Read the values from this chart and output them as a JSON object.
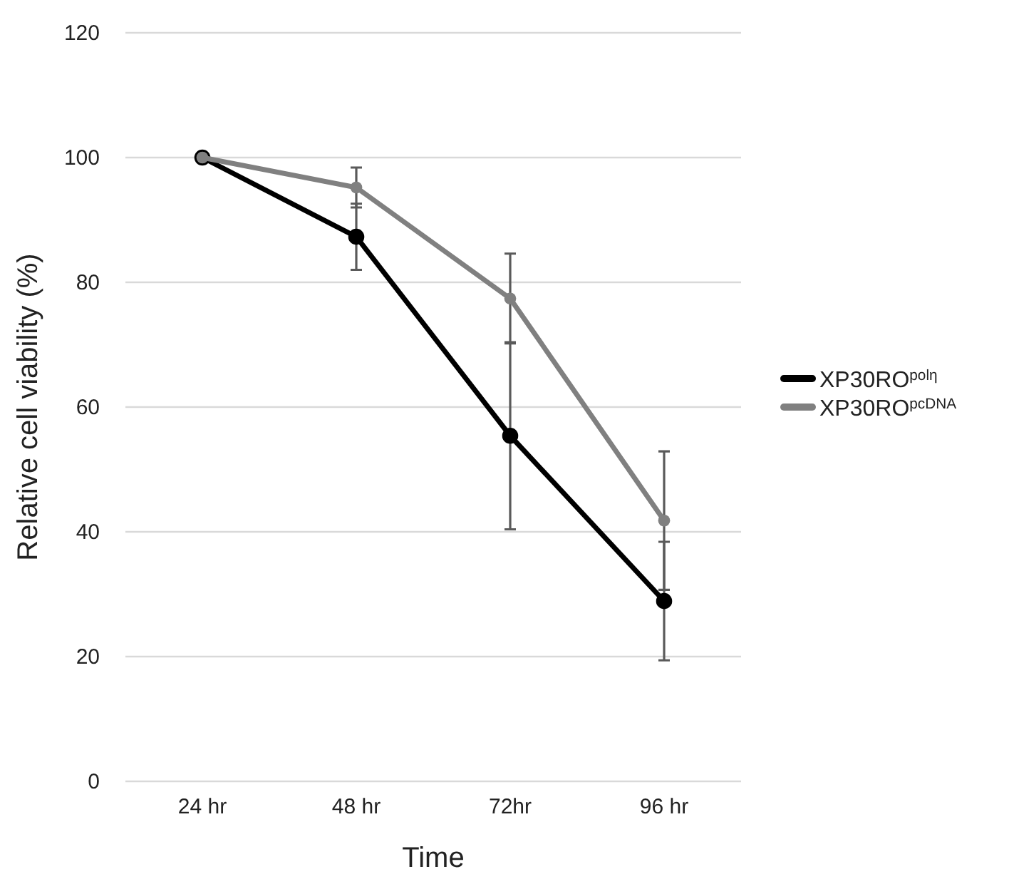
{
  "chart_data": {
    "type": "line",
    "xlabel": "Time",
    "ylabel": "Relative cell viability (%)",
    "categories": [
      "24 hr",
      "48 hr",
      "72hr",
      "96 hr"
    ],
    "series": [
      {
        "name": "XP30RO$^{polη}$",
        "color": "#000000",
        "values": [
          100,
          87.3,
          55.4,
          28.9
        ],
        "errors": [
          null,
          5.3,
          15,
          9.5
        ]
      },
      {
        "name": "XP30RO$^{pcDNA}$",
        "color": "#808080",
        "values": [
          100,
          95.2,
          77.4,
          41.8
        ],
        "errors": [
          null,
          3.2,
          7.2,
          11.1
        ]
      }
    ],
    "ylim": [
      0,
      120
    ],
    "yticks": [
      0,
      20,
      40,
      60,
      80,
      100,
      120
    ],
    "grid": "y",
    "legend": "right",
    "marker": "circle",
    "line_style": "solid"
  }
}
